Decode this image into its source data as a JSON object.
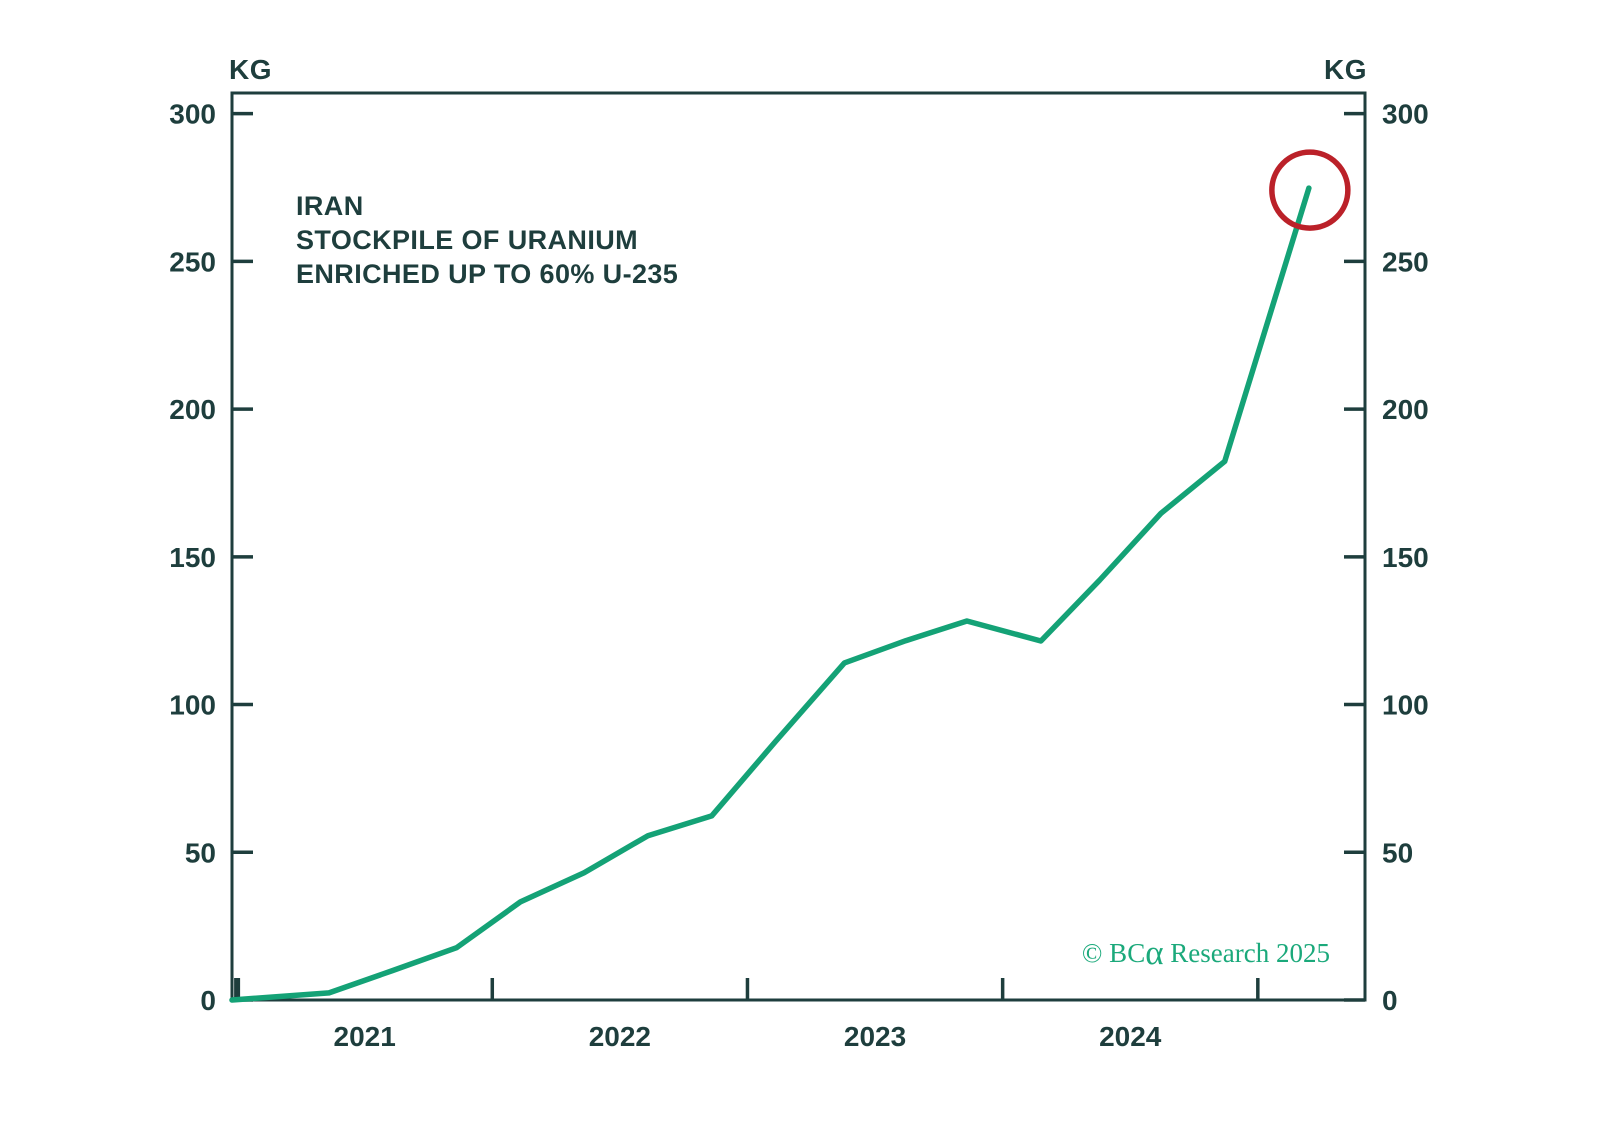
{
  "chart_data": {
    "type": "line",
    "title_lines": [
      "IRAN",
      "STOCKPILE OF URANIUM",
      "ENRICHED UP TO 60% U-235"
    ],
    "unit_left": "KG",
    "unit_right": "KG",
    "xlabel": "",
    "ylabel": "KG",
    "grid": false,
    "legend": "none",
    "xlim": [
      2020.98,
      2025.42
    ],
    "ylim": [
      0,
      307
    ],
    "yticks": [
      0,
      50,
      100,
      150,
      200,
      250,
      300
    ],
    "ytick_labels": [
      "0",
      "50",
      "100",
      "150",
      "200",
      "250",
      "300"
    ],
    "ytick_sides": "both",
    "xticks": [
      2021,
      2022,
      2023,
      2024,
      2025
    ],
    "xtick_year_labels": [
      {
        "label": "2021",
        "pos": 2021.5
      },
      {
        "label": "2022",
        "pos": 2022.5
      },
      {
        "label": "2023",
        "pos": 2023.5
      },
      {
        "label": "2024",
        "pos": 2024.5
      }
    ],
    "series": [
      {
        "name": "Iran stockpile of uranium enriched up to 60% U-235",
        "unit": "kg",
        "color": "#14a276",
        "points": [
          {
            "x": 2020.98,
            "y": 0
          },
          {
            "x": 2021.36,
            "y": 2.4
          },
          {
            "x": 2021.61,
            "y": 10.0
          },
          {
            "x": 2021.86,
            "y": 17.7
          },
          {
            "x": 2022.11,
            "y": 33.2
          },
          {
            "x": 2022.36,
            "y": 43.1
          },
          {
            "x": 2022.61,
            "y": 55.6
          },
          {
            "x": 2022.86,
            "y": 62.3
          },
          {
            "x": 2023.11,
            "y": 87.5
          },
          {
            "x": 2023.38,
            "y": 114.1
          },
          {
            "x": 2023.62,
            "y": 121.6
          },
          {
            "x": 2023.86,
            "y": 128.3
          },
          {
            "x": 2024.15,
            "y": 121.5
          },
          {
            "x": 2024.38,
            "y": 142.1
          },
          {
            "x": 2024.62,
            "y": 164.7
          },
          {
            "x": 2024.87,
            "y": 182.3
          },
          {
            "x": 2025.2,
            "y": 274.8
          }
        ]
      }
    ],
    "annotation": {
      "type": "circle",
      "target": "last-point",
      "kg": 274.8,
      "radius_px": 38,
      "color": "#bb2129"
    },
    "watermark": {
      "prefix": "© BC",
      "alpha": "α",
      "suffix": " Research 2025"
    },
    "colors": {
      "ink": "#1e3e3d",
      "line": "#14a276",
      "watermark_green": "#1ba97b",
      "circle_red": "#bb2129",
      "background": "#ffffff"
    }
  }
}
